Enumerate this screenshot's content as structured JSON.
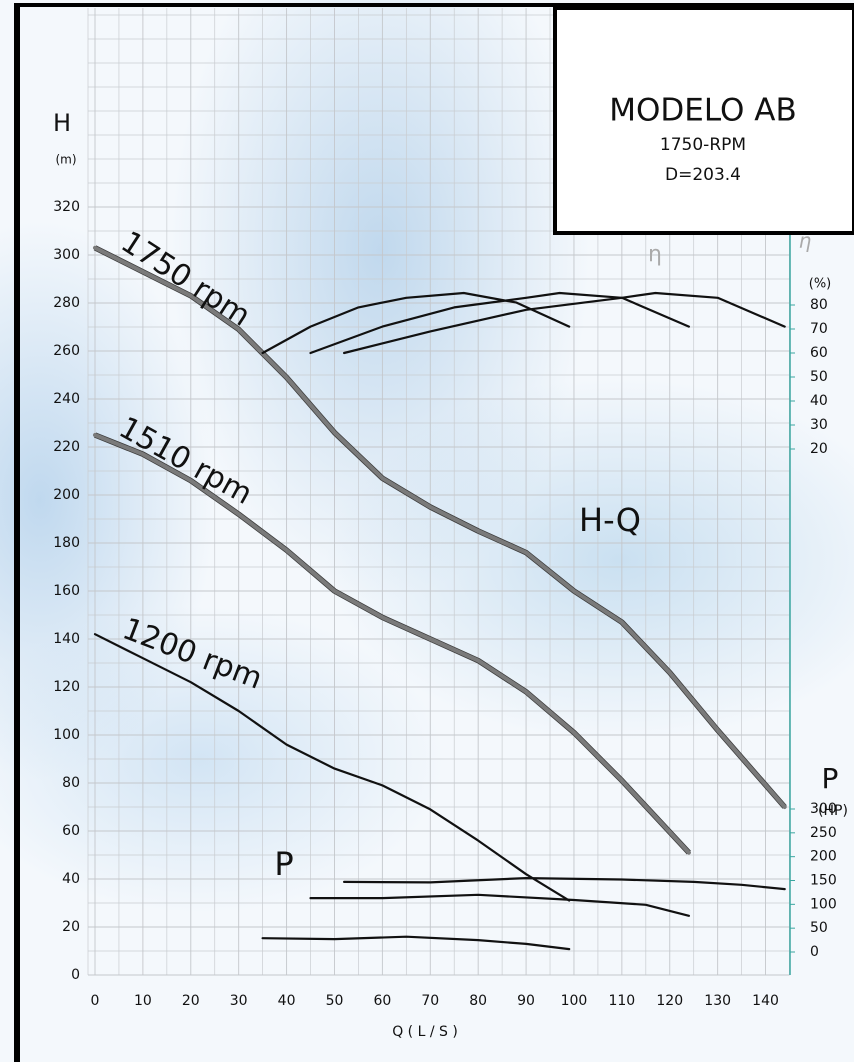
{
  "chart_data": {
    "type": "line",
    "title": "MODELO AB",
    "info": [
      "1750-RPM",
      "D=203.4"
    ],
    "xlabel": "Q ( L / S )",
    "ylabel": "H",
    "yunit": "(m)",
    "y2label": "η",
    "y2unit": "(%)",
    "y3label": "P",
    "y3unit": "(HP)",
    "annotations": [
      "H-Q",
      "P",
      "η"
    ],
    "grid": true,
    "xlim": [
      0,
      145
    ],
    "xticks": [
      0,
      10,
      20,
      30,
      40,
      50,
      60,
      70,
      80,
      90,
      100,
      110,
      120,
      130,
      140
    ],
    "ylim": [
      0,
      400
    ],
    "yticks": [
      0,
      20,
      40,
      60,
      80,
      100,
      120,
      140,
      160,
      180,
      200,
      220,
      240,
      260,
      280,
      300,
      320
    ],
    "y2lim": [
      20,
      80
    ],
    "y2ticks": [
      20,
      30,
      40,
      50,
      60,
      70,
      80
    ],
    "y3lim": [
      0,
      300
    ],
    "y3ticks": [
      0,
      50,
      100,
      150,
      200,
      250,
      300
    ],
    "series": [
      {
        "name": "1750 rpm",
        "color": "#7a7a7a",
        "axis": "y",
        "x": [
          0,
          10,
          20,
          30,
          40,
          50,
          60,
          70,
          80,
          90,
          100,
          110,
          120,
          130,
          144
        ],
        "values": [
          303,
          293,
          283,
          269,
          249,
          226,
          207,
          195,
          185,
          176,
          160,
          147,
          126,
          102,
          70
        ]
      },
      {
        "name": "1510 rpm",
        "color": "#7a7a7a",
        "axis": "y",
        "x": [
          0,
          10,
          20,
          30,
          40,
          50,
          60,
          70,
          80,
          90,
          100,
          110,
          124
        ],
        "values": [
          225,
          217,
          206,
          192,
          177,
          160,
          149,
          140,
          131,
          118,
          101,
          81,
          51
        ]
      },
      {
        "name": "1200 rpm",
        "color": "#111111",
        "axis": "y",
        "x": [
          0,
          10,
          20,
          30,
          40,
          50,
          60,
          70,
          80,
          90,
          99
        ],
        "values": [
          142,
          132,
          122,
          110,
          96,
          86,
          79,
          69,
          56,
          42,
          31
        ]
      },
      {
        "color": "#111111",
        "axis": "y2",
        "x": [
          35,
          45,
          55,
          65,
          77,
          88,
          99
        ],
        "values": [
          60,
          71,
          79,
          83,
          85,
          81,
          71
        ]
      },
      {
        "color": "#111111",
        "axis": "y2",
        "x": [
          45,
          60,
          75,
          90,
          97,
          110,
          124
        ],
        "values": [
          60,
          71,
          79,
          83,
          85,
          83,
          71
        ]
      },
      {
        "color": "#111111",
        "axis": "y2",
        "x": [
          52,
          70,
          90,
          110,
          117,
          130,
          144
        ],
        "values": [
          60,
          69,
          78,
          83,
          85,
          83,
          71
        ]
      },
      {
        "color": "#111111",
        "axis": "y3",
        "x": [
          52,
          70,
          90,
          110,
          125,
          135,
          144
        ],
        "values": [
          147,
          146,
          155,
          152,
          147,
          141,
          132
        ]
      },
      {
        "color": "#111111",
        "axis": "y3",
        "x": [
          45,
          60,
          80,
          100,
          115,
          124
        ],
        "values": [
          113,
          113,
          120,
          109,
          99,
          76
        ]
      },
      {
        "color": "#111111",
        "axis": "y3",
        "x": [
          35,
          50,
          65,
          80,
          90,
          99
        ],
        "values": [
          29,
          27,
          32,
          25,
          17,
          6
        ]
      }
    ]
  }
}
